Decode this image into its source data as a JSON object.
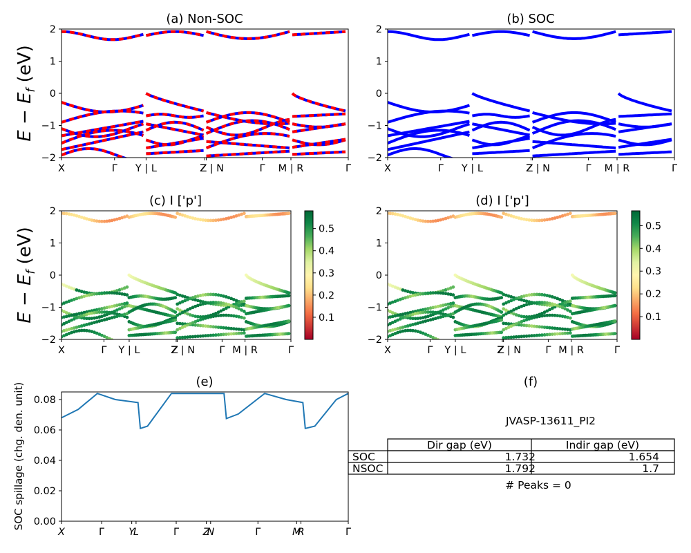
{
  "titles": {
    "a": "(a) Non-SOC",
    "b": "(b) SOC",
    "c": "(c)  I ['p']",
    "d": "(d) I ['p']",
    "e": "(e)",
    "f": "(f)"
  },
  "band_ylabel": "E − E",
  "band_ylabel_sub": "f",
  "band_ylabel_unit": " (eV)",
  "spill_ylabel": "SOC spillage (chg. den. unit)",
  "band_kpath_labels": [
    "X",
    "Γ",
    "Y | L",
    "Z",
    "Z | N",
    "Γ",
    "M | R",
    "Γ"
  ],
  "spill_kpath_labels": [
    "X",
    "Γ",
    "Y",
    "L",
    "Γ",
    "Z",
    "N",
    "Γ",
    "M",
    "R",
    "Γ"
  ],
  "colors": {
    "nonsoc_up": "#0000ff",
    "nonsoc_dn": "#ff0000",
    "soc": "#0000ff",
    "spill_line": "#1f77b4"
  },
  "chart_data": [
    {
      "type": "line",
      "panel": "a",
      "ylim": [
        -2,
        2
      ],
      "yticks": [
        -2,
        -1,
        0,
        1,
        2
      ],
      "xticks": [
        "X",
        "Γ",
        "Y | L",
        "Z",
        "Z | N",
        "Γ",
        "M | R",
        "Γ"
      ],
      "segments": 4,
      "spin_channels": [
        "up",
        "down"
      ]
    },
    {
      "type": "line",
      "panel": "b",
      "ylim": [
        -2,
        2
      ],
      "yticks": [
        -2,
        -1,
        0,
        1,
        2
      ],
      "xticks": [
        "X",
        "Γ",
        "Y | L",
        "Z",
        "Z | N",
        "Γ",
        "M | R",
        "Γ"
      ]
    },
    {
      "type": "scatter",
      "panel": "c",
      "ylim": [
        -2,
        2
      ],
      "yticks": [
        -2,
        -1,
        0,
        1,
        2
      ],
      "xticks": [
        "X",
        "Γ",
        "Y | L",
        "Z",
        "Z | N",
        "Γ",
        "M | R",
        "Γ"
      ],
      "colorbar": {
        "ticks": [
          "0.1",
          "0.2",
          "0.3",
          "0.4",
          "0.5"
        ],
        "range": [
          0.0,
          0.58
        ],
        "colormap": "RdYlGn"
      }
    },
    {
      "type": "scatter",
      "panel": "d",
      "ylim": [
        -2,
        2
      ],
      "yticks": [
        -2,
        -1,
        0,
        1,
        2
      ],
      "xticks": [
        "X",
        "Γ",
        "Y | L",
        "Z",
        "Z | N",
        "Γ",
        "M | R",
        "Γ"
      ],
      "colorbar": {
        "ticks": [
          "0.1",
          "0.2",
          "0.3",
          "0.4",
          "0.5"
        ],
        "range": [
          0.0,
          0.565
        ],
        "colormap": "RdYlGn"
      }
    },
    {
      "type": "line",
      "panel": "e",
      "ylabel": "SOC spillage (chg. den. unit)",
      "ylim": [
        0.0,
        0.085
      ],
      "yticks": [
        "0.00",
        "0.02",
        "0.04",
        "0.06",
        "0.08"
      ],
      "xticks": [
        "X",
        "Γ",
        "Y",
        "L",
        "Γ",
        "Z",
        "N",
        "Γ",
        "M",
        "R",
        "Γ"
      ],
      "series": [
        {
          "points": [
            [
              0.0,
              0.068
            ],
            [
              0.14,
              0.0735
            ],
            [
              0.3,
              0.084
            ],
            [
              0.45,
              0.08
            ],
            [
              0.64,
              0.078
            ],
            [
              0.66,
              0.061
            ],
            [
              0.72,
              0.0625
            ],
            [
              0.92,
              0.084
            ],
            [
              1.36,
              0.084
            ],
            [
              1.38,
              0.0675
            ],
            [
              1.48,
              0.0705
            ],
            [
              1.7,
              0.084
            ],
            [
              1.88,
              0.08
            ],
            [
              2.02,
              0.078
            ],
            [
              2.04,
              0.061
            ],
            [
              2.12,
              0.0625
            ],
            [
              2.3,
              0.08
            ],
            [
              2.4,
              0.084
            ]
          ]
        }
      ]
    },
    {
      "type": "table",
      "panel": "f",
      "title": "JVASP-13611_PI2",
      "columns": [
        "",
        "Dir gap (eV)",
        "Indir gap (eV)"
      ],
      "rows": [
        [
          "SOC",
          "1.732",
          "1.654"
        ],
        [
          "NSOC",
          "1.792",
          "1.7"
        ]
      ],
      "note": "# Peaks = 0"
    }
  ]
}
